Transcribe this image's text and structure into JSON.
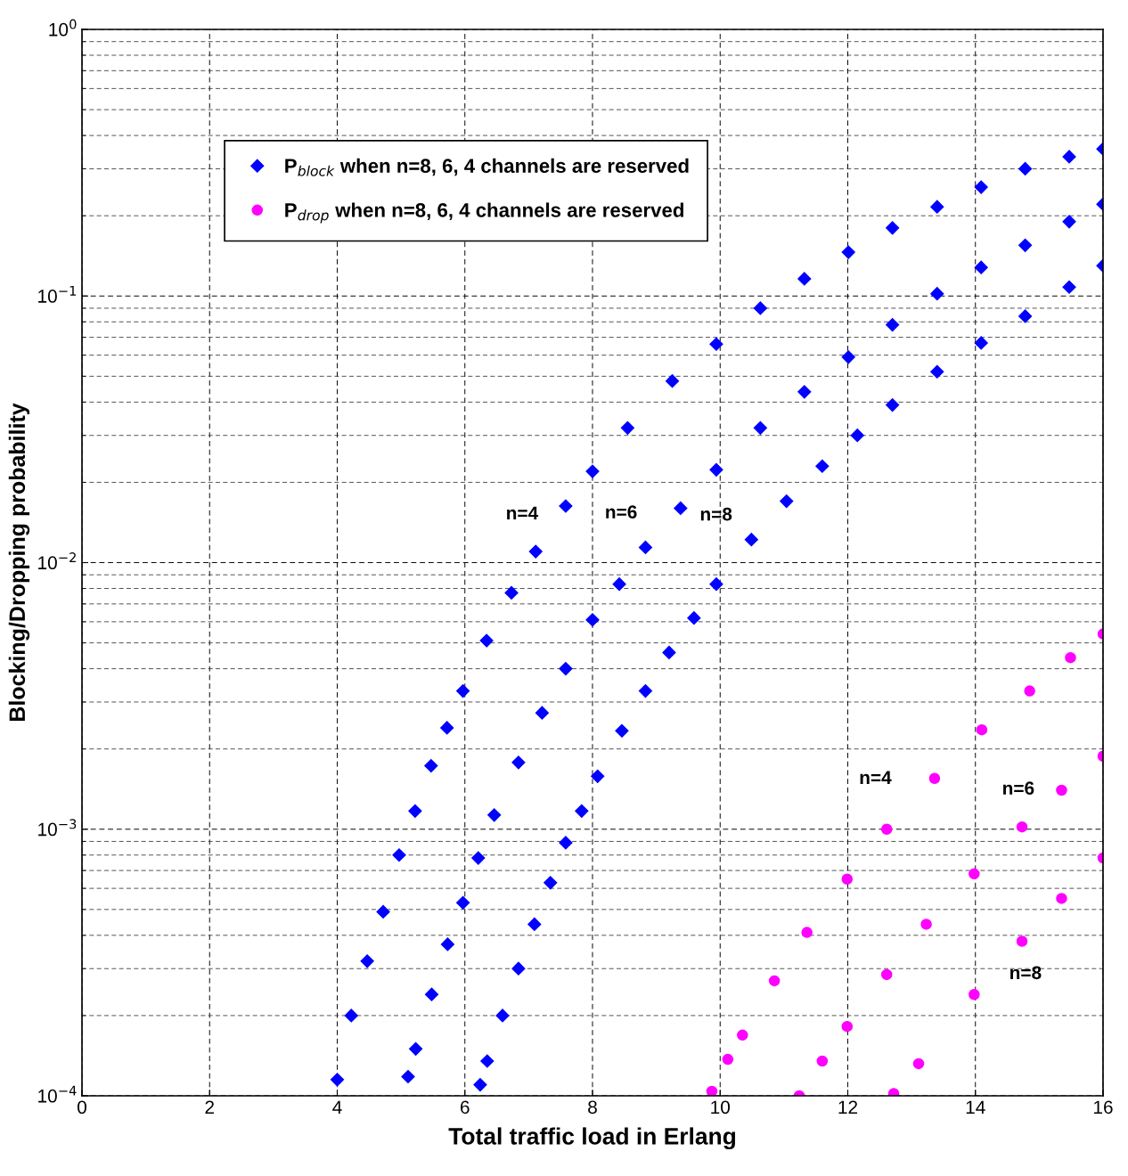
{
  "chart_data": {
    "type": "scatter",
    "xlabel": "Total traffic load in Erlang",
    "ylabel": "Blocking/Dropping probability",
    "log": "y",
    "grid": true,
    "legend": "top left",
    "xlim": [
      0,
      16
    ],
    "xticks": [
      0,
      2,
      4,
      6,
      8,
      10,
      12,
      14,
      16
    ],
    "ylim": [
      0.0001,
      1
    ],
    "yticks": [
      {
        "value": 0.0001,
        "label": "10$^{−4}$"
      },
      {
        "value": 0.001,
        "label": "10$^{−3}$"
      },
      {
        "value": 0.01,
        "label": "10$^{−2}$"
      },
      {
        "value": 0.1,
        "label": "10$^{−1}$"
      },
      {
        "value": 1,
        "label": "10$^{0}$"
      }
    ],
    "series": [
      {
        "name": "P$_{block}$ when n=8, 6, 4 channels are reserved",
        "color": "#0000ff",
        "marker": "diamond",
        "x": [
          4.0,
          4.22,
          4.47,
          4.72,
          4.97,
          5.22,
          5.47,
          5.72,
          5.97,
          6.34,
          6.73,
          7.11,
          7.58,
          8.0,
          8.55,
          9.25,
          9.94,
          10.63,
          11.32,
          12.01,
          12.7,
          13.4,
          14.09,
          14.78,
          15.47,
          16
        ],
        "values": [
          0.000115,
          0.0002,
          0.00032,
          0.00049,
          0.0008,
          0.00117,
          0.00173,
          0.0024,
          0.0033,
          0.0051,
          0.0077,
          0.011,
          0.0163,
          0.022,
          0.032,
          0.048,
          0.066,
          0.09,
          0.116,
          0.146,
          0.18,
          0.216,
          0.256,
          0.3,
          0.333,
          0.356
        ]
      },
      {
        "color": "#0000ff",
        "marker": "diamond",
        "x": [
          5.11,
          5.23,
          5.48,
          5.73,
          5.97,
          6.21,
          6.46,
          6.84,
          7.21,
          7.58,
          8.0,
          8.42,
          8.83,
          9.38,
          9.94,
          10.63,
          11.32,
          12.01,
          12.7,
          13.4,
          14.09,
          14.78,
          15.47,
          16
        ],
        "values": [
          0.000118,
          0.00015,
          0.00024,
          0.00037,
          0.00053,
          0.00078,
          0.00113,
          0.00178,
          0.00273,
          0.004,
          0.0061,
          0.0083,
          0.0114,
          0.016,
          0.0223,
          0.032,
          0.0437,
          0.059,
          0.078,
          0.102,
          0.128,
          0.155,
          0.19,
          0.221
        ]
      },
      {
        "color": "#0000ff",
        "marker": "diamond",
        "x": [
          6.24,
          6.35,
          6.59,
          6.84,
          7.09,
          7.34,
          7.58,
          7.83,
          8.08,
          8.46,
          8.83,
          9.2,
          9.59,
          9.94,
          10.49,
          11.04,
          11.6,
          12.15,
          12.7,
          13.4,
          14.09,
          14.78,
          15.47,
          16
        ],
        "values": [
          0.00011,
          0.000135,
          0.0002,
          0.0003,
          0.00044,
          0.00063,
          0.00089,
          0.00117,
          0.00158,
          0.00234,
          0.0033,
          0.0046,
          0.0062,
          0.0083,
          0.0122,
          0.017,
          0.023,
          0.03,
          0.039,
          0.052,
          0.0667,
          0.084,
          0.108,
          0.13
        ]
      },
      {
        "name": "P$_{drop}$ when n=8, 6, 4 channels are reserved",
        "color": "#ff00ff",
        "marker": "circle",
        "x": [
          9.87,
          10.12,
          10.35,
          10.85,
          11.36,
          11.99,
          12.61,
          13.36,
          14.1,
          14.85,
          15.49,
          16
        ],
        "values": [
          0.000104,
          0.000137,
          0.000169,
          0.00027,
          0.00041,
          0.00065,
          0.001,
          0.00155,
          0.00236,
          0.0033,
          0.0044,
          0.0054
        ]
      },
      {
        "color": "#ff00ff",
        "marker": "circle",
        "x": [
          11.24,
          11.6,
          11.99,
          12.61,
          13.23,
          13.98,
          14.73,
          15.35,
          16
        ],
        "values": [
          0.0001,
          0.000135,
          0.000182,
          0.000285,
          0.00044,
          0.00068,
          0.00102,
          0.0014,
          0.00188
        ]
      },
      {
        "color": "#ff00ff",
        "marker": "circle",
        "x": [
          12.72,
          13.11,
          13.98,
          14.73,
          15.35,
          16
        ],
        "values": [
          0.000102,
          0.000132,
          0.00024,
          0.00038,
          0.00055,
          0.00078
        ]
      }
    ],
    "annotations": [
      "n=4",
      "n=6",
      "n=8",
      "n=4",
      "n=6",
      "n=8"
    ]
  }
}
